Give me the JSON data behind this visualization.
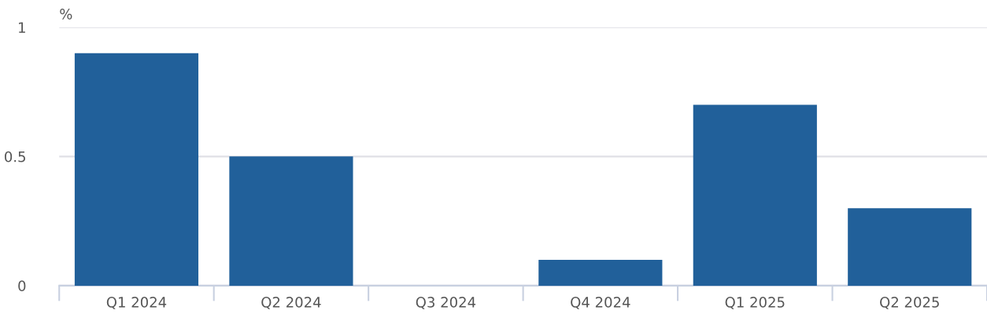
{
  "chart_data": {
    "type": "bar",
    "ylabel": "%",
    "categories": [
      "Q1 2024",
      "Q2 2024",
      "Q3 2024",
      "Q4 2024",
      "Q1 2025",
      "Q2 2025"
    ],
    "values": [
      0.9,
      0.5,
      0,
      0.1,
      0.7,
      0.3
    ],
    "color": "#21609a",
    "ylim": [
      0,
      1
    ],
    "yticks": [
      0,
      {
        "value": 0.5,
        "label": "0.5"
      },
      1
    ],
    "grid": "y",
    "legend": false
  }
}
